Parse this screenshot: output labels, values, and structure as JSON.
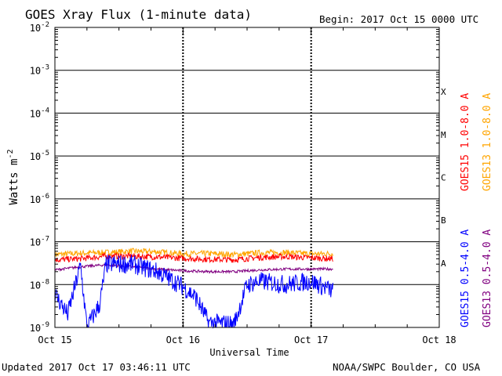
{
  "header": {
    "title": "GOES Xray Flux (1-minute data)",
    "begin": "Begin:  2017 Oct 15 0000 UTC"
  },
  "footer": {
    "updated": "Updated 2017 Oct 17 03:46:11 UTC",
    "credit": "NOAA/SWPC Boulder, CO USA"
  },
  "chart_data": {
    "type": "line",
    "title": "GOES Xray Flux (1-minute data)",
    "xlabel": "Universal Time",
    "ylabel": "Watts m",
    "ylabel_exponent": "-2",
    "yscale": "log",
    "ylim": [
      1e-09,
      0.01
    ],
    "xlim_days": [
      0,
      3
    ],
    "x_ticks": [
      {
        "day": 0,
        "label": "Oct 15"
      },
      {
        "day": 1,
        "label": "Oct 16"
      },
      {
        "day": 2,
        "label": "Oct 17"
      },
      {
        "day": 3,
        "label": "Oct 18"
      }
    ],
    "y_ticks": [
      {
        "exp": -9,
        "label": "10",
        "sup": "-9"
      },
      {
        "exp": -8,
        "label": "10",
        "sup": "-8"
      },
      {
        "exp": -7,
        "label": "10",
        "sup": "-7"
      },
      {
        "exp": -6,
        "label": "10",
        "sup": "-6"
      },
      {
        "exp": -5,
        "label": "10",
        "sup": "-5"
      },
      {
        "exp": -4,
        "label": "10",
        "sup": "-4"
      },
      {
        "exp": -3,
        "label": "10",
        "sup": "-3"
      },
      {
        "exp": -2,
        "label": "10",
        "sup": "-2"
      }
    ],
    "flare_classes": [
      {
        "label": "A",
        "exp": -8
      },
      {
        "label": "B",
        "exp": -7
      },
      {
        "label": "C",
        "exp": -6
      },
      {
        "label": "M",
        "exp": -5
      },
      {
        "label": "X",
        "exp": -4
      }
    ],
    "grid": true,
    "series": [
      {
        "name": "GOES13 1.0-8.0 A",
        "color": "#ffa500",
        "points": [
          [
            0.0,
            5e-08
          ],
          [
            0.2,
            5.4e-08
          ],
          [
            0.4,
            5.6e-08
          ],
          [
            0.6,
            6e-08
          ],
          [
            0.8,
            5.8e-08
          ],
          [
            1.0,
            5.2e-08
          ],
          [
            1.2,
            5.3e-08
          ],
          [
            1.4,
            5e-08
          ],
          [
            1.6,
            5.5e-08
          ],
          [
            1.8,
            5.6e-08
          ],
          [
            2.0,
            5.2e-08
          ],
          [
            2.17,
            5.3e-08
          ]
        ]
      },
      {
        "name": "GOES15 1.0-8.0 A",
        "color": "#ff0000",
        "points": [
          [
            0.0,
            3.8e-08
          ],
          [
            0.2,
            4e-08
          ],
          [
            0.4,
            4.6e-08
          ],
          [
            0.6,
            4.6e-08
          ],
          [
            0.8,
            4.4e-08
          ],
          [
            1.0,
            4.1e-08
          ],
          [
            1.2,
            3.9e-08
          ],
          [
            1.4,
            3.8e-08
          ],
          [
            1.6,
            4.3e-08
          ],
          [
            1.8,
            4.5e-08
          ],
          [
            2.0,
            4.2e-08
          ],
          [
            2.17,
            4e-08
          ]
        ]
      },
      {
        "name": "GOES13 0.5-4.0 A",
        "color": "#800080",
        "points": [
          [
            0.0,
            2.2e-08
          ],
          [
            0.2,
            2.6e-08
          ],
          [
            0.4,
            2.9e-08
          ],
          [
            0.6,
            2.6e-08
          ],
          [
            0.8,
            2.3e-08
          ],
          [
            1.0,
            2.1e-08
          ],
          [
            1.2,
            2e-08
          ],
          [
            1.4,
            2e-08
          ],
          [
            1.6,
            2.2e-08
          ],
          [
            1.8,
            2.3e-08
          ],
          [
            2.0,
            2.3e-08
          ],
          [
            2.17,
            2.3e-08
          ]
        ]
      },
      {
        "name": "GOES15 0.5-4.0 A",
        "color": "#0000ff",
        "points": [
          [
            0.0,
            6e-09
          ],
          [
            0.1,
            2e-09
          ],
          [
            0.2,
            2.8e-08
          ],
          [
            0.25,
            1e-09
          ],
          [
            0.35,
            3.5e-09
          ],
          [
            0.4,
            3e-08
          ],
          [
            0.6,
            3e-08
          ],
          [
            0.8,
            2e-08
          ],
          [
            1.0,
            9e-09
          ],
          [
            1.1,
            5e-09
          ],
          [
            1.2,
            1.3e-09
          ],
          [
            1.4,
            1.2e-09
          ],
          [
            1.5,
            1e-08
          ],
          [
            1.6,
            1.2e-08
          ],
          [
            1.8,
            1e-08
          ],
          [
            2.0,
            1.2e-08
          ],
          [
            2.17,
            7e-09
          ]
        ]
      }
    ]
  }
}
